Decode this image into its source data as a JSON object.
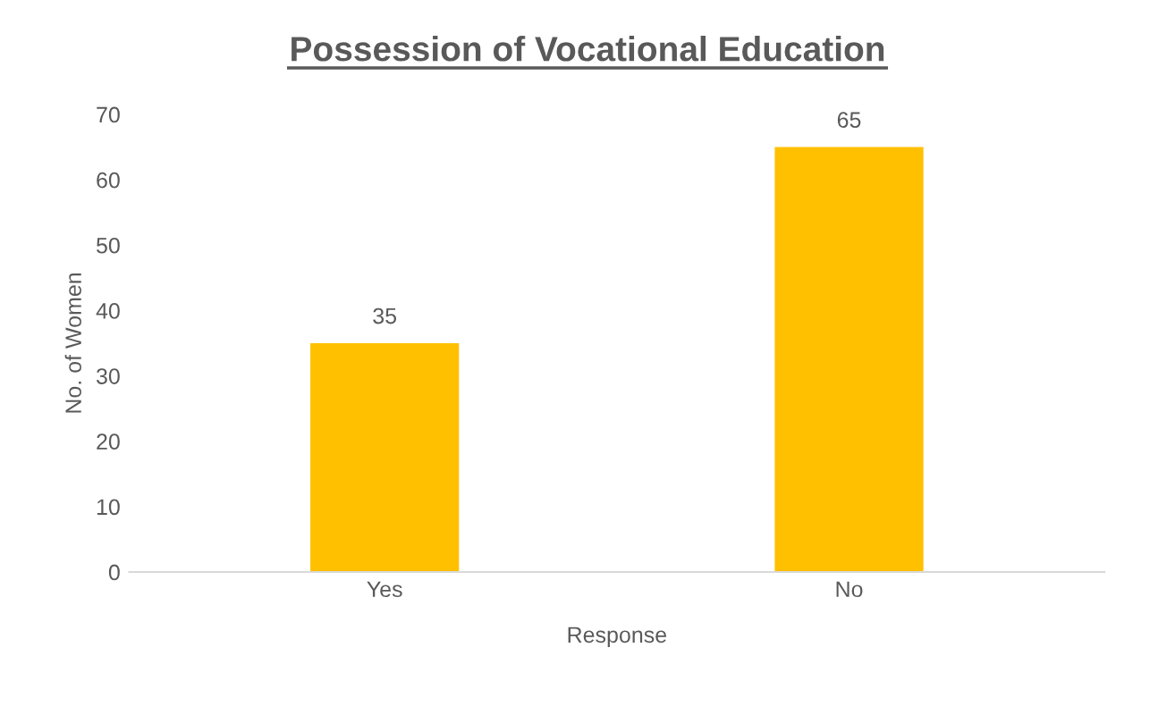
{
  "chart_data": {
    "type": "bar",
    "title": "Possession of Vocational Education",
    "xlabel": "Response",
    "ylabel": "No. of Women",
    "categories": [
      "Yes",
      "No"
    ],
    "values": [
      35,
      65
    ],
    "color": "#ffc000",
    "ylim": [
      0,
      70
    ],
    "yticks": [
      0,
      10,
      20,
      30,
      40,
      50,
      60,
      70
    ],
    "data_labels": true,
    "grid": false
  }
}
